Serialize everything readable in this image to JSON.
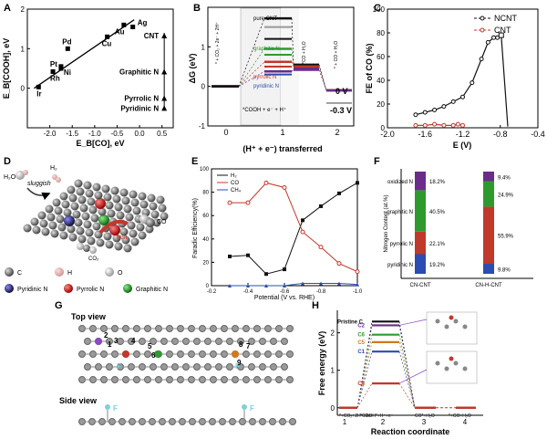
{
  "panels": {
    "A": "A",
    "B": "B",
    "C": "C",
    "D": "D",
    "E": "E",
    "F": "F",
    "G": "G",
    "H": "H"
  },
  "colors": {
    "black": "#111111",
    "red": "#c0392b",
    "blue": "#2b4cb0",
    "green": "#2e9a2e",
    "purple": "#6a2c8a",
    "orange": "#d07a20",
    "lightblue": "#7fd0dc"
  },
  "chart_data": [
    {
      "panel": "A",
      "type": "scatter",
      "xlabel": "E_B[CO], eV",
      "ylabel": "E_B[COOH], eV",
      "xlim": [
        -2.5,
        0.75
      ],
      "ylim": [
        -1.0,
        2.0
      ],
      "xticks": [
        "-2.0",
        "-1.5",
        "-1.0",
        "-0.5",
        "0.0",
        "0.5"
      ],
      "yticks": [
        "0",
        "1",
        "2"
      ],
      "points": [
        {
          "label": "Ir",
          "x": -2.25,
          "y": 0.03
        },
        {
          "label": "Rh",
          "x": -1.93,
          "y": 0.42
        },
        {
          "label": "Pt",
          "x": -1.75,
          "y": 0.5
        },
        {
          "label": "Pd",
          "x": -1.6,
          "y": 1.0
        },
        {
          "label": "Ni",
          "x": -1.75,
          "y": 0.55
        },
        {
          "label": "Cu",
          "x": -0.72,
          "y": 1.3
        },
        {
          "label": "Au",
          "x": -0.35,
          "y": 1.6
        },
        {
          "label": "Ag",
          "x": -0.15,
          "y": 1.55
        }
      ],
      "fit_line": {
        "x": [
          -2.35,
          -0.12
        ],
        "y": [
          0.0,
          1.73
        ]
      },
      "doped": [
        {
          "label": "CNT",
          "x": 0.55,
          "y": 1.33
        },
        {
          "label": "Graphitic N",
          "x": 0.55,
          "y": 0.42
        },
        {
          "label": "Pyrrolic N",
          "x": 0.55,
          "y": -0.25
        },
        {
          "label": "Pyridinic N",
          "x": 0.55,
          "y": -0.5
        }
      ]
    },
    {
      "panel": "B",
      "type": "line",
      "xlabel": "(H⁺ + e⁻) transferred",
      "ylabel": "ΔG (eV)",
      "xticks": [
        "0",
        "1",
        "2"
      ],
      "yticks": [
        "-1",
        "0",
        "1"
      ],
      "states": [
        "* + CO₂ + 2e⁻ + 2H⁺",
        "*COOH + e⁻ + H⁺",
        "*CO + H₂O",
        "* + CO + H₂O"
      ],
      "series": [
        {
          "name": "pure CNT",
          "levels": [
            0,
            1.72,
            0.55,
            -0.1
          ]
        },
        {
          "name": "graphitic N",
          "levels": [
            0,
            0.95,
            0.5,
            -0.1
          ]
        },
        {
          "name": "pyrrolic N",
          "levels": [
            0,
            0.62,
            0.5,
            -0.1
          ]
        },
        {
          "name": "pyridinic N",
          "levels": [
            0,
            0.38,
            0.42,
            -0.1
          ]
        }
      ],
      "annotations": [
        "pure CNT",
        "graphitic N",
        "pyrrolic N",
        "pyridinic N",
        "*COOH + e⁻ + H⁺",
        "*CO + H₂O",
        "* + CO + H₂O",
        "* + CO₂ + 2e⁻ + 2H⁺",
        "0 V",
        "-0.3 V"
      ]
    },
    {
      "panel": "C",
      "type": "line",
      "xlabel": "E (V)",
      "ylabel": "FE of CO (%)",
      "xlim": [
        -2.0,
        -0.4
      ],
      "ylim": [
        0,
        100
      ],
      "xticks": [
        "-2.0",
        "-1.6",
        "-1.2",
        "-0.8",
        "-0.4"
      ],
      "yticks": [
        "0",
        "20",
        "40",
        "60",
        "80",
        "100"
      ],
      "series": [
        {
          "name": "NCNT",
          "x": [
            -1.7,
            -1.6,
            -1.5,
            -1.4,
            -1.3,
            -1.2,
            -1.1,
            -1.0,
            -0.93,
            -0.87,
            -0.83,
            -0.79,
            -0.72
          ],
          "y": [
            11,
            13,
            15,
            18,
            22,
            26,
            38,
            58,
            72,
            76,
            76,
            78,
            1
          ]
        },
        {
          "name": "CNT",
          "x": [
            -1.7,
            -1.6,
            -1.5,
            -1.4,
            -1.3,
            -1.25,
            -1.2
          ],
          "y": [
            2,
            2,
            3,
            2,
            2,
            3,
            2
          ]
        }
      ],
      "legend": [
        "NCNT",
        "CNT"
      ]
    },
    {
      "panel": "E",
      "type": "line",
      "xlabel": "Potential (V vs. RHE)",
      "ylabel": "Faradic Efficiency(%)",
      "xlim": [
        -0.2,
        -1.0
      ],
      "ylim": [
        0,
        100
      ],
      "xticks": [
        "-0.2",
        "-0.4",
        "-0.6",
        "-0.8",
        "-1.0"
      ],
      "yticks": [
        "0",
        "20",
        "40",
        "60",
        "80",
        "100"
      ],
      "series": [
        {
          "name": "H₂",
          "x": [
            -0.3,
            -0.4,
            -0.5,
            -0.6,
            -0.7,
            -0.8,
            -0.9,
            -1.0
          ],
          "y": [
            25,
            26,
            10,
            14,
            56,
            68,
            79,
            88
          ]
        },
        {
          "name": "CO",
          "x": [
            -0.3,
            -0.4,
            -0.5,
            -0.6,
            -0.7,
            -0.8,
            -0.9,
            -1.0
          ],
          "y": [
            71,
            71,
            88,
            84,
            46,
            33,
            19,
            12
          ]
        },
        {
          "name": "CH₄",
          "x": [
            -0.3,
            -0.4,
            -0.5,
            -0.6,
            -0.7,
            -0.8,
            -0.9,
            -1.0
          ],
          "y": [
            0,
            0,
            0,
            0,
            2,
            2,
            2,
            1
          ]
        }
      ],
      "legend": [
        "H₂",
        "CO",
        "CH₄"
      ]
    },
    {
      "panel": "F",
      "type": "bar",
      "ylabel": "Nitrogen Content (at.%)",
      "categories": [
        "CN-CNT",
        "CN-H-CNT"
      ],
      "series": [
        {
          "name": "pyridinic N",
          "values": [
            19.2,
            9.8
          ]
        },
        {
          "name": "pyrrolic N",
          "values": [
            22.1,
            55.9
          ]
        },
        {
          "name": "graphitic N",
          "values": [
            40.5,
            24.9
          ]
        },
        {
          "name": "oxidized N",
          "values": [
            18.2,
            9.4
          ]
        }
      ],
      "labels": {
        "CN-CNT": [
          "19.2%",
          "22.1%",
          "40.5%",
          "18.2%"
        ],
        "CN-H-CNT": [
          "9.8%",
          "55.9%",
          "24.9%",
          "9.4%"
        ]
      }
    },
    {
      "panel": "H",
      "type": "line",
      "xlabel": "Reaction coordinate",
      "ylabel": "Free energy (eV)",
      "xticks": [
        "1",
        "2",
        "3",
        "4"
      ],
      "yticks": [
        "0",
        "1",
        "2"
      ],
      "state_labels": [
        "*+CO₂+2H⁺+2e⁻",
        "*COOH*+H⁺+e⁻",
        "CO*+H₂O",
        "*+CO+H₂O"
      ],
      "series": [
        {
          "name": "Pristine C",
          "level2": 2.3
        },
        {
          "name": "C2",
          "level2": 2.2
        },
        {
          "name": "C6",
          "level2": 1.95
        },
        {
          "name": "C5",
          "level2": 1.75
        },
        {
          "name": "C1",
          "level2": 1.5
        },
        {
          "name": "C4",
          "level2": 0.65
        }
      ]
    }
  ],
  "panelD": {
    "labels": {
      "h2o": "H₂O",
      "h2": "H₂",
      "sluggish": "sluggish",
      "fast": "fast",
      "co": "CO",
      "co2": "CO₂"
    },
    "legend": [
      "C",
      "H",
      "O",
      "Pyridinic N",
      "Pyrrolic N",
      "Graphitic N"
    ]
  },
  "panelG": {
    "top_view": "Top view",
    "side_view": "Side view",
    "site_numbers": [
      "1",
      "2",
      "3",
      "4",
      "5",
      "6",
      "7",
      "8",
      "9"
    ],
    "f_label": "F"
  }
}
